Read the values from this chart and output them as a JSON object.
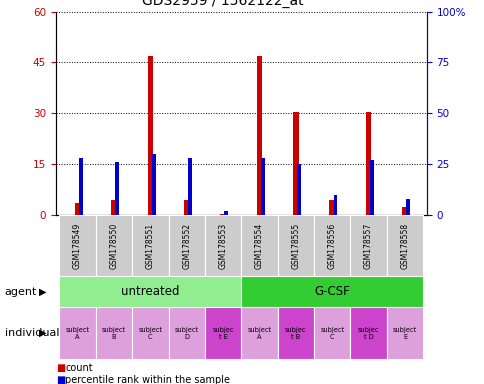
{
  "title": "GDS2959 / 1562122_at",
  "samples": [
    "GSM178549",
    "GSM178550",
    "GSM178551",
    "GSM178552",
    "GSM178553",
    "GSM178554",
    "GSM178555",
    "GSM178556",
    "GSM178557",
    "GSM178558"
  ],
  "count_values": [
    3.5,
    4.5,
    47,
    4.5,
    0.3,
    47,
    30.5,
    4.5,
    30.5,
    2.5
  ],
  "percentile_values": [
    28,
    26,
    30,
    28,
    2,
    28,
    25,
    10,
    27,
    8
  ],
  "ylim_left": [
    0,
    60
  ],
  "ylim_right": [
    0,
    100
  ],
  "yticks_left": [
    0,
    15,
    30,
    45,
    60
  ],
  "yticks_right": [
    0,
    25,
    50,
    75,
    100
  ],
  "agent_color_untreated": "#90ee90",
  "agent_color_gcsf": "#33cc33",
  "individual_colors": [
    "#dda0dd",
    "#dda0dd",
    "#dda0dd",
    "#dda0dd",
    "#cc44cc",
    "#dda0dd",
    "#cc44cc",
    "#dda0dd",
    "#cc44cc",
    "#dda0dd"
  ],
  "bar_color_count": "#cc0000",
  "bar_color_percentile": "#0000cc",
  "sample_bg_color": "#cccccc",
  "legend_count": "count",
  "legend_percentile": "percentile rank within the sample",
  "right_axis_color": "#0000cc",
  "left_axis_color": "#cc0000",
  "indiv_labels": [
    "subject\nA",
    "subject\nB",
    "subject\nC",
    "subject\nD",
    "subjec\nt E",
    "subject\nA",
    "subjec\nt B",
    "subject\nC",
    "subjec\nt D",
    "subject\nE"
  ]
}
